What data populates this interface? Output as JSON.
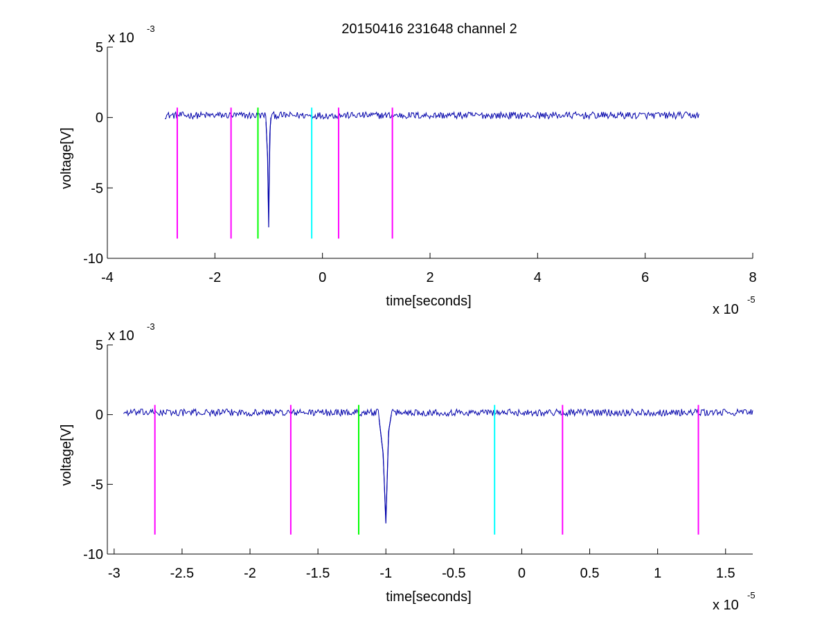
{
  "figure": {
    "title": "20150416 231648 channel 2"
  },
  "chart_data": [
    {
      "type": "line",
      "title": "20150416 231648 channel 2",
      "xlabel": "time[seconds]",
      "ylabel": "voltage[V]",
      "x_multiplier": "x 10",
      "x_exponent": "-5",
      "y_multiplier": "x 10",
      "y_exponent": "-3",
      "xlim": [
        -4,
        8
      ],
      "ylim": [
        -10,
        5
      ],
      "xticks": [
        -4,
        -2,
        0,
        2,
        4,
        6,
        8
      ],
      "xtick_labels": [
        "-4",
        "-2",
        "0",
        "2",
        "4",
        "6",
        "8"
      ],
      "yticks": [
        -10,
        -5,
        0,
        5
      ],
      "ytick_labels": [
        "-10",
        "-5",
        "0",
        "5"
      ],
      "grid": false,
      "series": [
        {
          "color": "#0000aa",
          "x_range": [
            -2.93,
            7.0
          ],
          "baseline": 0.15,
          "noise_amplitude": 0.25,
          "pulse": {
            "x": [
              -1.05,
              -1.02,
              -1.0,
              -0.98,
              -0.96
            ],
            "y": [
              -0.3,
              -2.8,
              -7.8,
              -1.2,
              0.0
            ]
          }
        }
      ],
      "markers": [
        {
          "x": -2.7,
          "y0": -8.6,
          "y1": 0.7,
          "color": "#ff00ff"
        },
        {
          "x": -1.7,
          "y0": -8.6,
          "y1": 0.7,
          "color": "#ff00ff"
        },
        {
          "x": -1.2,
          "y0": -8.6,
          "y1": 0.7,
          "color": "#00ff00"
        },
        {
          "x": -0.2,
          "y0": -8.6,
          "y1": 0.7,
          "color": "#00ffff"
        },
        {
          "x": 0.3,
          "y0": -8.6,
          "y1": 0.7,
          "color": "#ff00ff"
        },
        {
          "x": 1.3,
          "y0": -8.6,
          "y1": 0.7,
          "color": "#ff00ff"
        }
      ]
    },
    {
      "type": "line",
      "title": "",
      "xlabel": "time[seconds]",
      "ylabel": "voltage[V]",
      "x_multiplier": "x 10",
      "x_exponent": "-5",
      "y_multiplier": "x 10",
      "y_exponent": "-3",
      "xlim": [
        -3.05,
        1.7
      ],
      "ylim": [
        -10,
        5
      ],
      "xticks": [
        -3,
        -2.5,
        -2,
        -1.5,
        -1,
        -0.5,
        0,
        0.5,
        1,
        1.5
      ],
      "xtick_labels": [
        "-3",
        "-2.5",
        "-2",
        "-1.5",
        "-1",
        "-0.5",
        "0",
        "0.5",
        "1",
        "1.5"
      ],
      "yticks": [
        -10,
        -5,
        0,
        5
      ],
      "ytick_labels": [
        "-10",
        "-5",
        "0",
        "5"
      ],
      "grid": false,
      "series": [
        {
          "color": "#0000aa",
          "x_range": [
            -2.93,
            1.7
          ],
          "baseline": 0.15,
          "noise_amplitude": 0.25,
          "pulse": {
            "x": [
              -1.05,
              -1.02,
              -1.0,
              -0.98,
              -0.96
            ],
            "y": [
              -0.3,
              -2.8,
              -7.8,
              -1.2,
              0.0
            ]
          }
        }
      ],
      "markers": [
        {
          "x": -2.7,
          "y0": -8.6,
          "y1": 0.7,
          "color": "#ff00ff"
        },
        {
          "x": -1.7,
          "y0": -8.6,
          "y1": 0.7,
          "color": "#ff00ff"
        },
        {
          "x": -1.2,
          "y0": -8.6,
          "y1": 0.7,
          "color": "#00ff00"
        },
        {
          "x": -0.2,
          "y0": -8.6,
          "y1": 0.7,
          "color": "#00ffff"
        },
        {
          "x": 0.3,
          "y0": -8.6,
          "y1": 0.7,
          "color": "#ff00ff"
        },
        {
          "x": 1.3,
          "y0": -8.6,
          "y1": 0.7,
          "color": "#ff00ff"
        }
      ]
    }
  ]
}
